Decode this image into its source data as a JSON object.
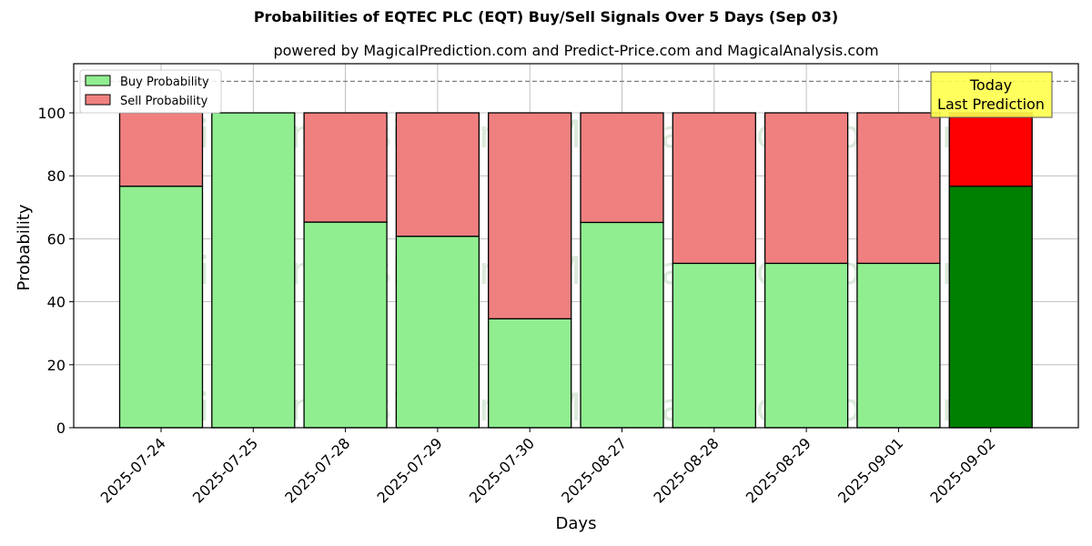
{
  "chart_data": {
    "type": "bar",
    "stacked": true,
    "title": "Probabilities of EQTEC PLC (EQT) Buy/Sell Signals Over 5 Days (Sep 03)",
    "subtitle": "powered by MagicalPrediction.com and Predict-Price.com and MagicalAnalysis.com",
    "xlabel": "Days",
    "ylabel": "Probability",
    "ylim": [
      0,
      115
    ],
    "yticks": [
      0,
      20,
      40,
      60,
      80,
      100
    ],
    "grid": true,
    "legend_position": "upper left",
    "categories": [
      "2025-07-24",
      "2025-07-25",
      "2025-07-28",
      "2025-07-29",
      "2025-07-30",
      "2025-08-27",
      "2025-08-28",
      "2025-08-29",
      "2025-09-01",
      "2025-09-02"
    ],
    "series": [
      {
        "name": "Buy Probability",
        "color": "#90ee90",
        "values": [
          76.7,
          100,
          65.3,
          60.8,
          34.6,
          65.2,
          52.2,
          52.2,
          52.2,
          76.7
        ]
      },
      {
        "name": "Sell Probability",
        "color": "#f08080",
        "values": [
          23.3,
          0,
          34.7,
          39.2,
          65.4,
          34.8,
          47.8,
          47.8,
          47.8,
          23.3
        ]
      }
    ],
    "highlight": {
      "index": 9,
      "buy_color": "#008000",
      "sell_color": "#ff0000"
    },
    "reference_line": {
      "y": 110,
      "style": "dashed",
      "color": "#808080"
    },
    "annotation": {
      "text_line1": "Today",
      "text_line2": "Last Prediction",
      "background": "#ffff4d"
    },
    "watermarks": [
      "MagicalAnalysis.com",
      "MagicalPrediction.com"
    ]
  }
}
